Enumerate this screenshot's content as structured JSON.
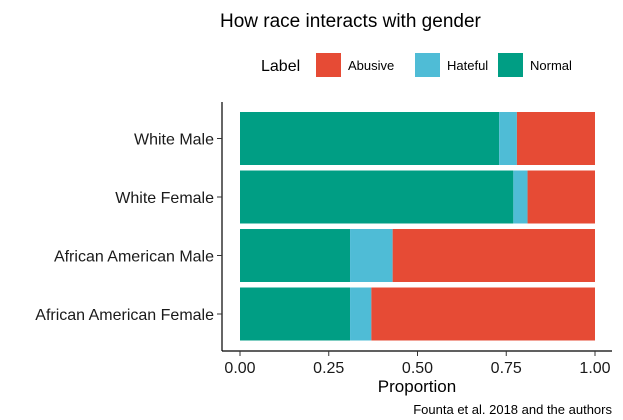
{
  "chart_data": {
    "type": "bar",
    "orientation": "horizontal",
    "stacked": true,
    "title": "How race interacts with gender",
    "xlabel": "Proportion",
    "ylabel": "",
    "xlim": [
      0,
      1
    ],
    "xticks": [
      "0.00",
      "0.25",
      "0.50",
      "0.75",
      "1.00"
    ],
    "categories": [
      "White Male",
      "White Female",
      "African American Male",
      "African American Female"
    ],
    "legend": {
      "title": "Label",
      "position": "top"
    },
    "series": [
      {
        "name": "Normal",
        "color": "#009E84",
        "values": [
          0.73,
          0.77,
          0.31,
          0.31
        ]
      },
      {
        "name": "Hateful",
        "color": "#4FBCD6",
        "values": [
          0.05,
          0.04,
          0.12,
          0.06
        ]
      },
      {
        "name": "Abusive",
        "color": "#E64B35",
        "values": [
          0.22,
          0.19,
          0.57,
          0.63
        ]
      }
    ],
    "legend_order": [
      "Abusive",
      "Hateful",
      "Normal"
    ],
    "caption": "Founta et al. 2018 and the authors"
  }
}
